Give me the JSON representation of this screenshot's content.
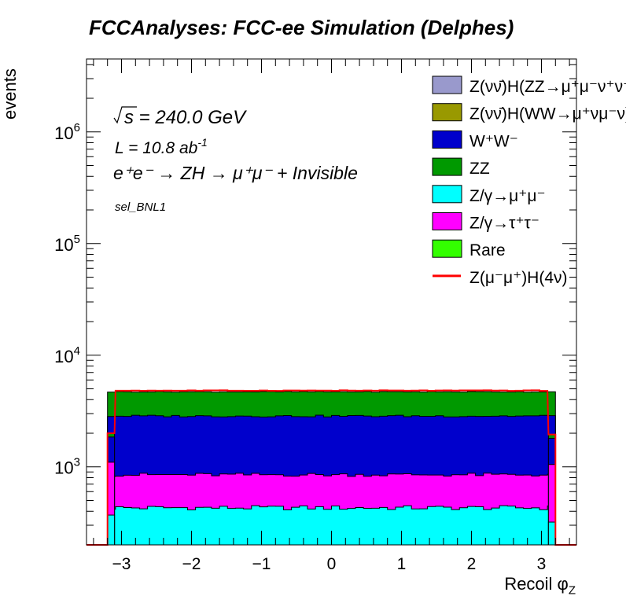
{
  "title": "FCCAnalyses: FCC-ee Simulation (Delphes)",
  "annotations": {
    "sqrt_s": "240.0 GeV",
    "lumi_prefix": "L = 10.8 ab",
    "lumi_exp": "-1",
    "process": "e⁺e⁻ → ZH → μ⁺μ⁻ + Invisible",
    "selection": "sel_BNL1"
  },
  "chart_data": {
    "type": "bar",
    "subtype": "stacked-histogram",
    "title": "FCCAnalyses: FCC-ee Simulation (Delphes)",
    "xlabel": "Recoil φ",
    "xlabel_sub": "Z",
    "ylabel": "events",
    "xlim": [
      -3.5,
      3.5
    ],
    "ylim": [
      200,
      4500000
    ],
    "yscale": "log",
    "x_ticks": [
      -3,
      -2,
      -1,
      0,
      1,
      2,
      3
    ],
    "x_tick_labels": [
      "−3",
      "−2",
      "−1",
      "0",
      "1",
      "2",
      "3"
    ],
    "y_ticks": [
      1000,
      10000,
      100000,
      1000000
    ],
    "y_tick_labels": [
      "10^3",
      "10^4",
      "10^5",
      "10^6"
    ],
    "grid": false,
    "legend_position": "top-right",
    "bins": {
      "edges_range": [
        -3.2,
        3.2
      ],
      "n_inner": 56,
      "edge_bin_cumulative": {
        "left": [
          null,
          370,
          1100,
          1850,
          2000
        ],
        "right": [
          null,
          320,
          1050,
          1800,
          1950
        ]
      },
      "layers_order": [
        "rare",
        "zg_tautau",
        "zg_mumu",
        "zz",
        "ww",
        "signal_ww",
        "signal_zz"
      ]
    },
    "series": [
      {
        "key": "signal_zz",
        "name": "Z(νν̄)H(ZZ→μ⁺μ⁻ν⁺ν⁻)",
        "color": "#9999cc",
        "cumulative_level": 4800
      },
      {
        "key": "signal_ww",
        "name": "Z(νν̄)H(WW→μ⁺νμ⁻ν)",
        "color": "#999900",
        "cumulative_level": 4780
      },
      {
        "key": "ww",
        "name": "W⁺W⁻",
        "color": "#0000cc",
        "cumulative_level": 2850
      },
      {
        "key": "zz",
        "name": "ZZ",
        "color": "#009900",
        "cumulative_level": 4700
      },
      {
        "key": "zg_mumu",
        "name": "Z/γ→μ⁺μ⁻",
        "color": "#00ffff",
        "cumulative_level": 430
      },
      {
        "key": "zg_tautau",
        "name": "Z/γ→τ⁺τ⁻",
        "color": "#ff00ff",
        "cumulative_level": 850
      },
      {
        "key": "rare",
        "name": "Rare",
        "color": "#33ff00",
        "cumulative_level": 0
      },
      {
        "key": "signal_line",
        "name": "Z(μ⁻μ⁺)H(4ν)",
        "color": "#ff0000",
        "style": "line",
        "level": 4820
      }
    ]
  }
}
